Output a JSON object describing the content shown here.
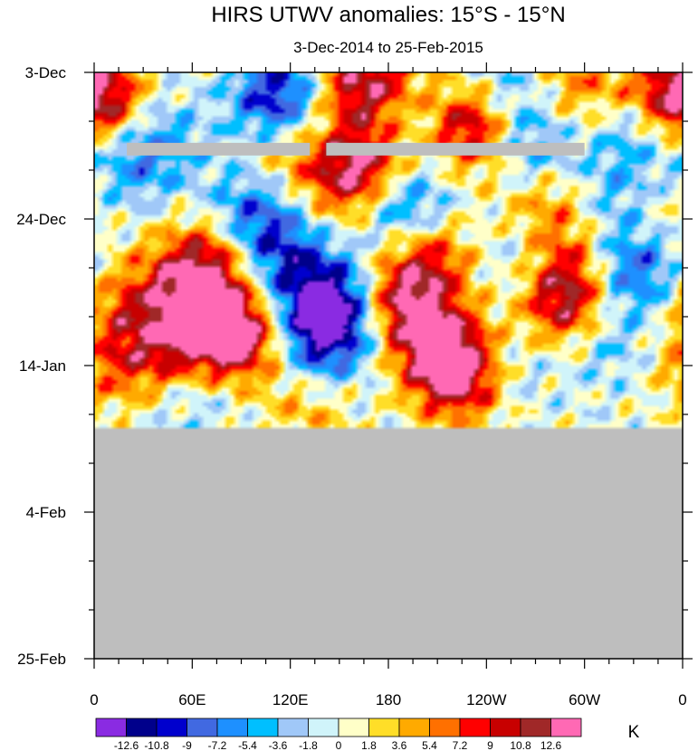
{
  "chart_data": {
    "type": "heatmap",
    "title": "HIRS UTWV anomalies: 15°S - 15°N",
    "subtitle": "3-Dec-2014 to 25-Feb-2015",
    "x_ticks": [
      "0",
      "60E",
      "120E",
      "180",
      "120W",
      "60W",
      "0"
    ],
    "x_tick_values": [
      0,
      60,
      120,
      180,
      240,
      300,
      360
    ],
    "x_range": [
      0,
      360
    ],
    "y_ticks": [
      "3-Dec",
      "24-Dec",
      "14-Jan",
      "4-Feb",
      "25-Feb"
    ],
    "y_tick_days": [
      0,
      21,
      42,
      63,
      84
    ],
    "y_range_days": [
      0,
      84
    ],
    "data_end_day": 51,
    "missing_segments": [
      {
        "day": 11,
        "lon_start": 20,
        "lon_end": 132
      },
      {
        "day": 11,
        "lon_start": 142,
        "lon_end": 300
      }
    ],
    "anomaly_centers": [
      {
        "lon": 70,
        "day": 36,
        "value": 11
      },
      {
        "lon": 88,
        "day": 38,
        "value": 11
      },
      {
        "lon": 58,
        "day": 30,
        "value": 8
      },
      {
        "lon": 72,
        "day": 26,
        "value": 7
      },
      {
        "lon": 20,
        "day": 33,
        "value": 6
      },
      {
        "lon": 38,
        "day": 40,
        "value": 6
      },
      {
        "lon": 190,
        "day": 33,
        "value": 12
      },
      {
        "lon": 215,
        "day": 40,
        "value": 12
      },
      {
        "lon": 225,
        "day": 44,
        "value": 10
      },
      {
        "lon": 205,
        "day": 26,
        "value": 8
      },
      {
        "lon": 168,
        "day": 13,
        "value": 9
      },
      {
        "lon": 158,
        "day": 16,
        "value": 8
      },
      {
        "lon": 225,
        "day": 7,
        "value": 10
      },
      {
        "lon": 242,
        "day": 9,
        "value": 8
      },
      {
        "lon": 158,
        "day": 2,
        "value": 8
      },
      {
        "lon": 178,
        "day": 1,
        "value": 6
      },
      {
        "lon": 290,
        "day": 34,
        "value": 10
      },
      {
        "lon": 287,
        "day": 28,
        "value": 8
      },
      {
        "lon": 275,
        "day": 20,
        "value": 6
      },
      {
        "lon": 2,
        "day": 4,
        "value": 8
      },
      {
        "lon": 355,
        "day": 3,
        "value": 8
      },
      {
        "lon": 10,
        "day": 42,
        "value": 5
      },
      {
        "lon": 130,
        "day": 48,
        "value": 4
      },
      {
        "lon": 120,
        "day": 12,
        "value": 5
      },
      {
        "lon": 300,
        "day": 2,
        "value": 6
      },
      {
        "lon": 340,
        "day": 20,
        "value": 5
      },
      {
        "lon": 95,
        "day": 20,
        "value": -7
      },
      {
        "lon": 110,
        "day": 25,
        "value": -6
      },
      {
        "lon": 130,
        "day": 30,
        "value": -6
      },
      {
        "lon": 140,
        "day": 38,
        "value": -11
      },
      {
        "lon": 150,
        "day": 33,
        "value": -8
      },
      {
        "lon": 40,
        "day": 10,
        "value": -5
      },
      {
        "lon": 110,
        "day": 5,
        "value": -6
      },
      {
        "lon": 115,
        "day": 2,
        "value": -6
      },
      {
        "lon": 200,
        "day": 7,
        "value": -5
      },
      {
        "lon": 180,
        "day": 18,
        "value": -6
      },
      {
        "lon": 195,
        "day": 20,
        "value": -5
      },
      {
        "lon": 245,
        "day": 3,
        "value": -5
      },
      {
        "lon": 260,
        "day": 10,
        "value": -9
      },
      {
        "lon": 265,
        "day": 26,
        "value": -5
      },
      {
        "lon": 310,
        "day": 38,
        "value": -5
      },
      {
        "lon": 330,
        "day": 28,
        "value": -9
      },
      {
        "lon": 325,
        "day": 18,
        "value": -6
      },
      {
        "lon": 330,
        "day": 8,
        "value": -5
      },
      {
        "lon": 250,
        "day": 42,
        "value": -4
      },
      {
        "lon": 20,
        "day": 14,
        "value": -4
      },
      {
        "lon": 60,
        "day": 47,
        "value": -3
      }
    ],
    "colorbar": {
      "labels": [
        "-12.6",
        "-10.8",
        "-9",
        "-7.2",
        "-5.4",
        "-3.6",
        "-1.8",
        "0",
        "1.8",
        "3.6",
        "5.4",
        "7.2",
        "9",
        "10.8",
        "12.6"
      ],
      "levels": [
        -12.6,
        -10.8,
        -9,
        -7.2,
        -5.4,
        -3.6,
        -1.8,
        0,
        1.8,
        3.6,
        5.4,
        7.2,
        9,
        10.8,
        12.6
      ],
      "colors": [
        "#8a2be2",
        "#00008b",
        "#0000cd",
        "#4169e1",
        "#1e90ff",
        "#00bfff",
        "#a0c8f8",
        "#d0f4fa",
        "#ffffc8",
        "#ffde28",
        "#ffaa00",
        "#ff7000",
        "#ff0000",
        "#c80000",
        "#a02828",
        "#ff69b4"
      ],
      "unit": "K"
    },
    "missing_color": "#bebebe"
  }
}
